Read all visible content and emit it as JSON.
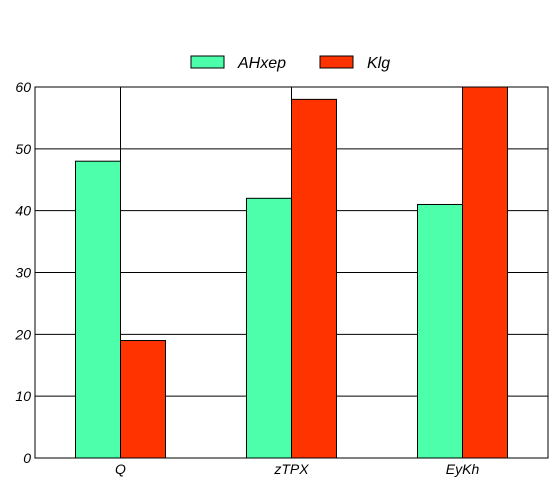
{
  "chart_data": {
    "type": "bar",
    "categories": [
      "Q",
      "zTPX",
      "EyKh"
    ],
    "series": [
      {
        "name": "AHxep",
        "values": [
          48,
          42,
          41
        ],
        "color": "#4dffaa"
      },
      {
        "name": "Klg",
        "values": [
          19,
          58,
          60
        ],
        "color": "#ff3300"
      }
    ],
    "ylim": [
      0,
      60
    ],
    "yticks": [
      0,
      10,
      20,
      30,
      40,
      50,
      60
    ],
    "grid": true,
    "legend_position": "top-center"
  }
}
